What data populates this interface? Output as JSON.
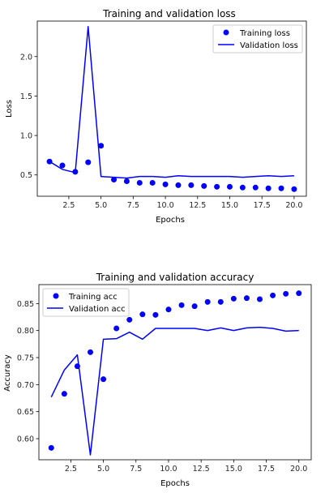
{
  "chart_data": [
    {
      "type": "line",
      "title": "Training and validation loss",
      "xlabel": "Epochs",
      "ylabel": "Loss",
      "xlim": [
        0.05,
        20.95
      ],
      "ylim": [
        0.23,
        2.45
      ],
      "xticks": [
        2.5,
        5.0,
        7.5,
        10.0,
        12.5,
        15.0,
        17.5,
        20.0
      ],
      "xtick_labels": [
        "2.5",
        "5.0",
        "7.5",
        "10.0",
        "12.5",
        "15.0",
        "17.5",
        "20.0"
      ],
      "yticks": [
        0.5,
        1.0,
        1.5,
        2.0
      ],
      "ytick_labels": [
        "0.5",
        "1.0",
        "1.5",
        "2.0"
      ],
      "legend": "top-right",
      "grid": false,
      "x": [
        1,
        2,
        3,
        4,
        5,
        6,
        7,
        8,
        9,
        10,
        11,
        12,
        13,
        14,
        15,
        16,
        17,
        18,
        19,
        20
      ],
      "series": [
        {
          "name": "Training loss",
          "style": "points",
          "color": "#0000ff",
          "values": [
            0.67,
            0.62,
            0.54,
            0.66,
            0.87,
            0.44,
            0.42,
            0.4,
            0.4,
            0.38,
            0.37,
            0.37,
            0.36,
            0.35,
            0.35,
            0.34,
            0.34,
            0.33,
            0.33,
            0.32
          ]
        },
        {
          "name": "Validation loss",
          "style": "line",
          "color": "#0000ff",
          "values": [
            0.67,
            0.57,
            0.53,
            2.38,
            0.48,
            0.47,
            0.46,
            0.48,
            0.48,
            0.47,
            0.49,
            0.48,
            0.48,
            0.48,
            0.48,
            0.47,
            0.48,
            0.49,
            0.48,
            0.49
          ]
        }
      ]
    },
    {
      "type": "line",
      "title": "Training and validation accuracy",
      "xlabel": "Epochs",
      "ylabel": "Accuracy",
      "xlim": [
        0.05,
        20.95
      ],
      "ylim": [
        0.561,
        0.885
      ],
      "xticks": [
        2.5,
        5.0,
        7.5,
        10.0,
        12.5,
        15.0,
        17.5,
        20.0
      ],
      "xtick_labels": [
        "2.5",
        "5.0",
        "7.5",
        "10.0",
        "12.5",
        "15.0",
        "17.5",
        "20.0"
      ],
      "yticks": [
        0.6,
        0.65,
        0.7,
        0.75,
        0.8,
        0.85
      ],
      "ytick_labels": [
        "0.60",
        "0.65",
        "0.70",
        "0.75",
        "0.80",
        "0.85"
      ],
      "legend": "top-left",
      "grid": false,
      "x": [
        1,
        2,
        3,
        4,
        5,
        6,
        7,
        8,
        9,
        10,
        11,
        12,
        13,
        14,
        15,
        16,
        17,
        18,
        19,
        20
      ],
      "series": [
        {
          "name": "Training acc",
          "style": "points",
          "color": "#0000ff",
          "values": [
            0.583,
            0.683,
            0.734,
            0.76,
            0.71,
            0.804,
            0.82,
            0.83,
            0.829,
            0.839,
            0.847,
            0.845,
            0.853,
            0.853,
            0.859,
            0.86,
            0.858,
            0.865,
            0.868,
            0.869
          ]
        },
        {
          "name": "Validation acc",
          "style": "line",
          "color": "#0000ff",
          "values": [
            0.677,
            0.727,
            0.755,
            0.57,
            0.784,
            0.785,
            0.797,
            0.784,
            0.804,
            0.804,
            0.804,
            0.804,
            0.8,
            0.805,
            0.8,
            0.805,
            0.806,
            0.804,
            0.799,
            0.8
          ]
        }
      ]
    }
  ]
}
